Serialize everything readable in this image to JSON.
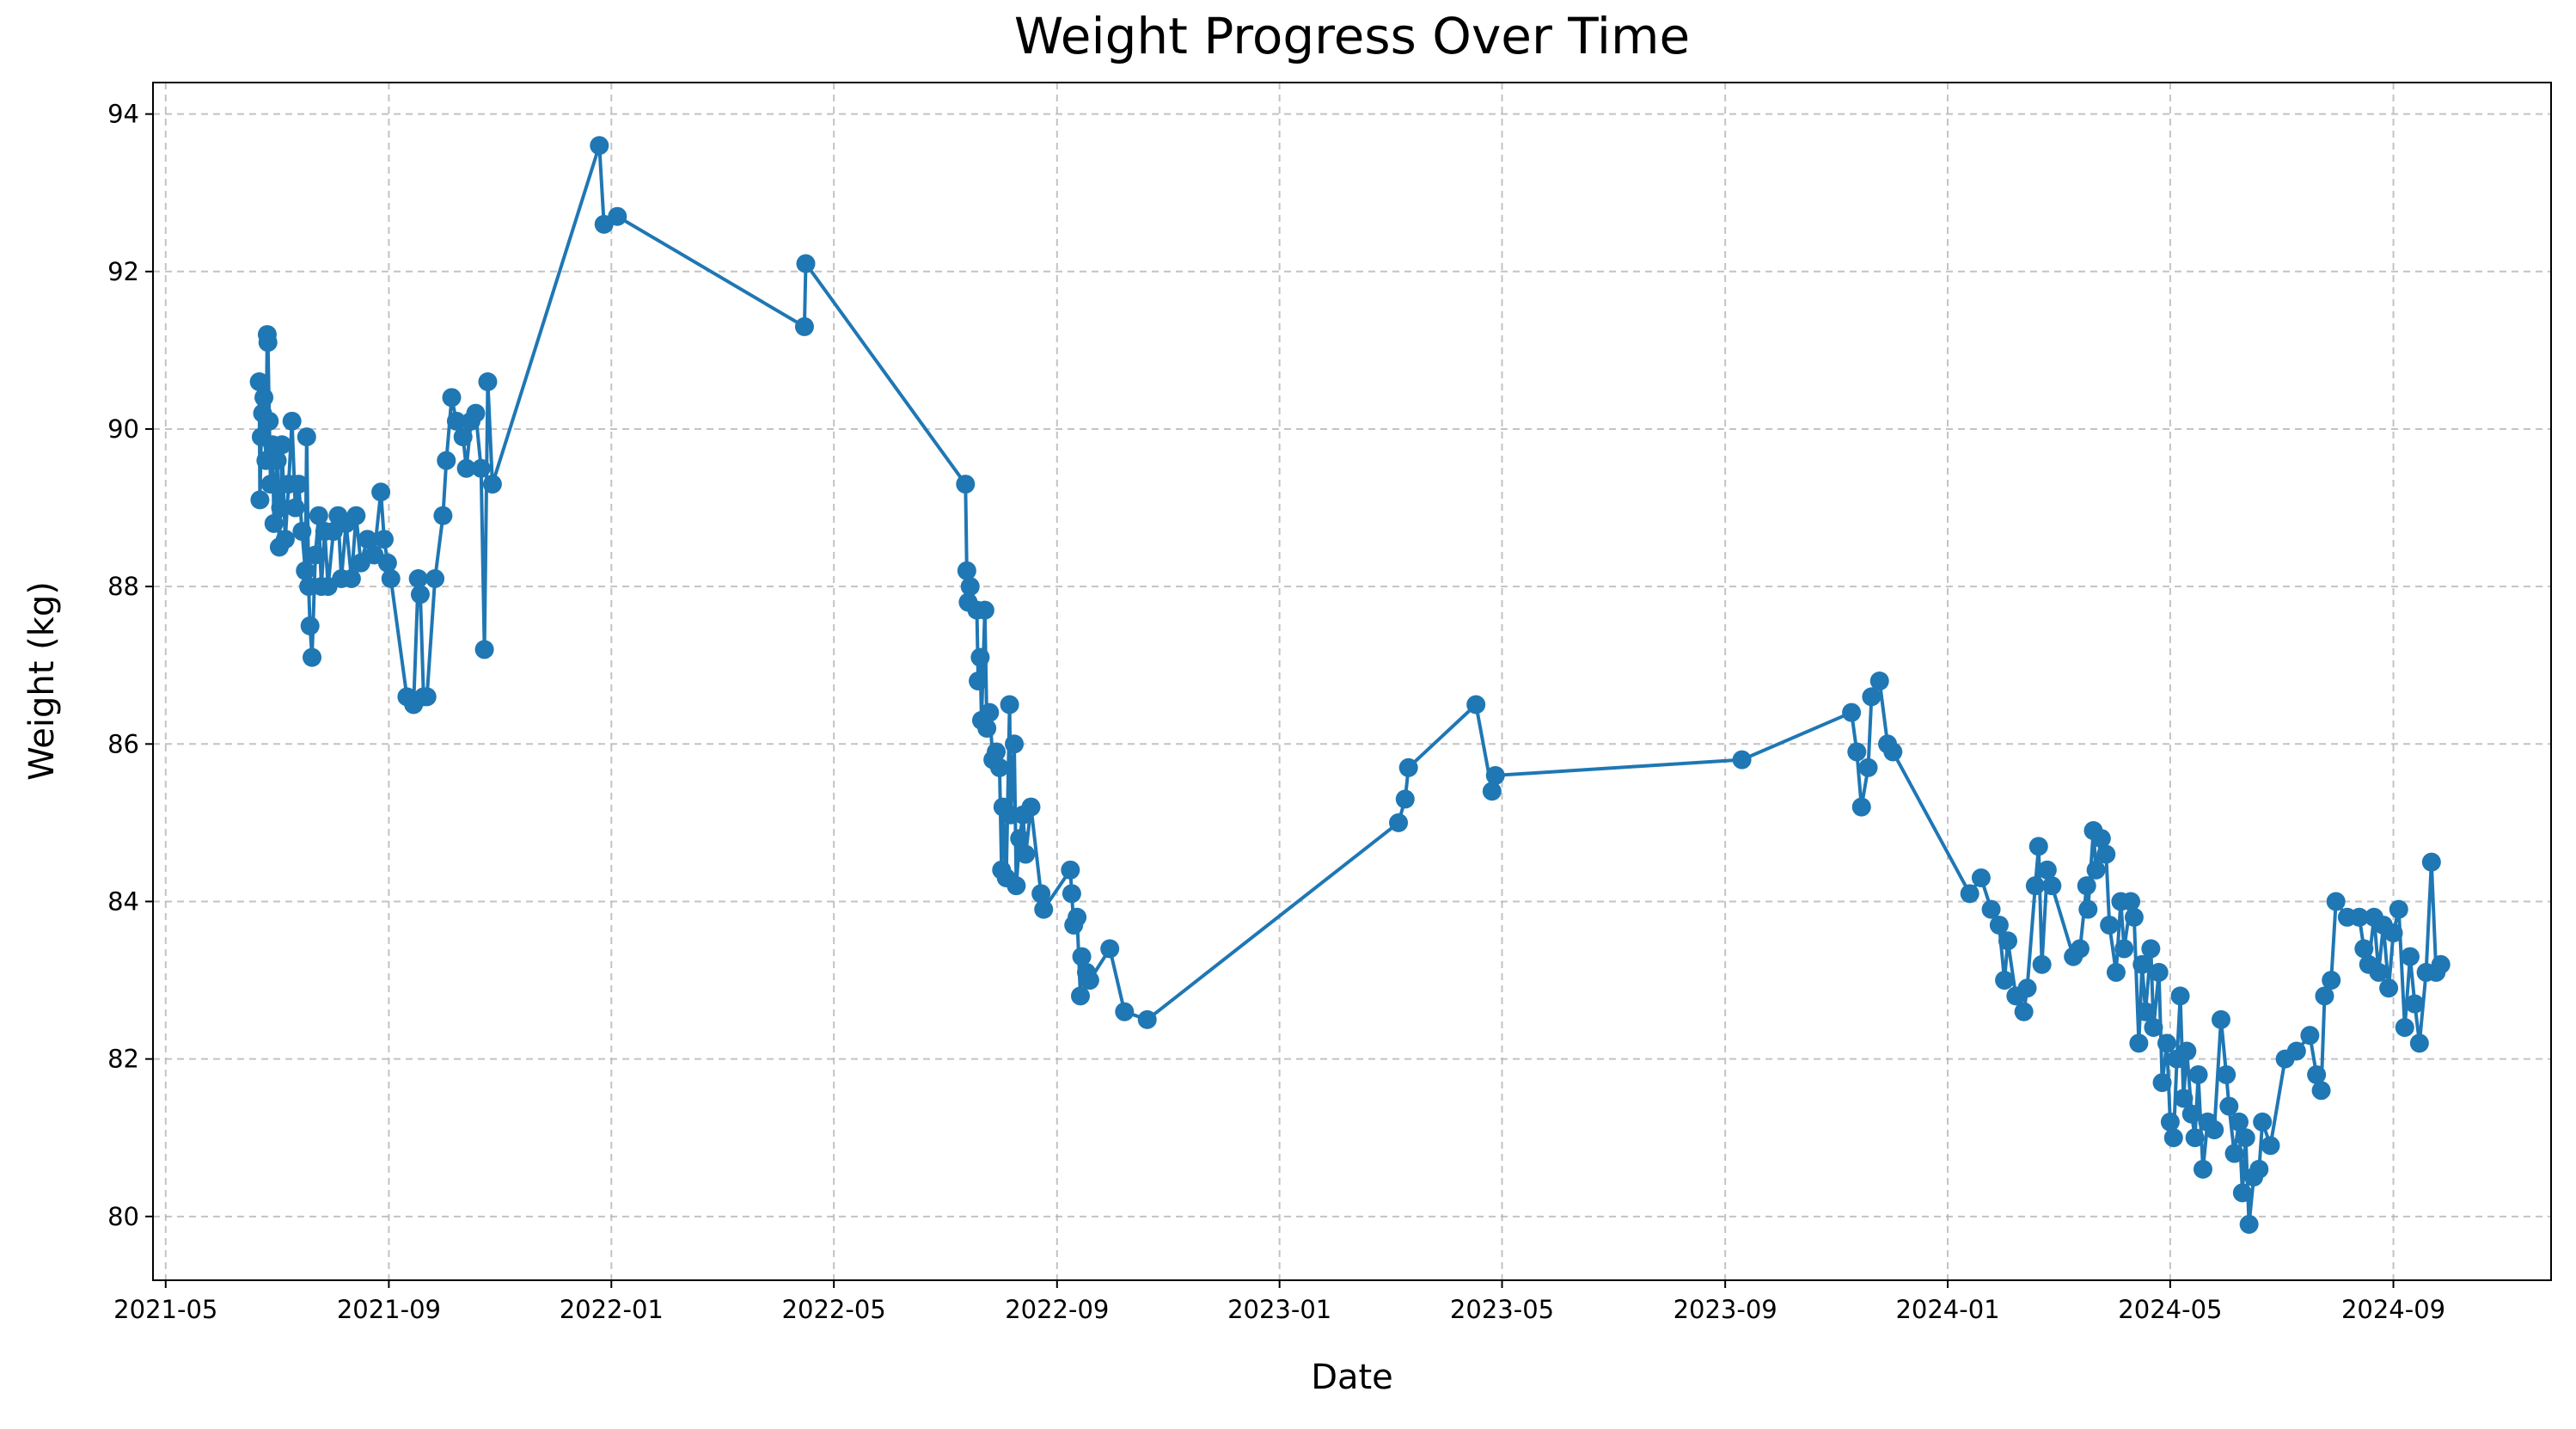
{
  "chart_data": {
    "type": "line",
    "title": "Weight Progress Over Time",
    "x_label": "Date",
    "y_label": "Weight (kg)",
    "color": "#1f77b4",
    "grid": true,
    "xlim": [
      2021.314,
      2024.903
    ],
    "ylim": [
      79.19,
      94.4
    ],
    "xticks": [
      {
        "value": 2021.333,
        "label": "2021-05"
      },
      {
        "value": 2021.667,
        "label": "2021-09"
      },
      {
        "value": 2022,
        "label": "2022-01"
      },
      {
        "value": 2022.333,
        "label": "2022-05"
      },
      {
        "value": 2022.667,
        "label": "2022-09"
      },
      {
        "value": 2023,
        "label": "2023-01"
      },
      {
        "value": 2023.333,
        "label": "2023-05"
      },
      {
        "value": 2023.667,
        "label": "2023-09"
      },
      {
        "value": 2024,
        "label": "2024-01"
      },
      {
        "value": 2024.333,
        "label": "2024-05"
      },
      {
        "value": 2024.667,
        "label": "2024-09"
      }
    ],
    "yticks": [
      80,
      82,
      84,
      86,
      88,
      90,
      92,
      94
    ],
    "x": [
      2021.473,
      2021.474,
      2021.476,
      2021.478,
      2021.48,
      2021.483,
      2021.485,
      2021.486,
      2021.488,
      2021.49,
      2021.493,
      2021.495,
      2021.5,
      2021.503,
      2021.505,
      2021.507,
      2021.512,
      2021.517,
      2021.522,
      2021.527,
      2021.532,
      2021.537,
      2021.542,
      2021.544,
      2021.547,
      2021.549,
      2021.552,
      2021.557,
      2021.562,
      2021.566,
      2021.571,
      2021.576,
      2021.584,
      2021.591,
      2021.596,
      2021.603,
      2021.611,
      2021.618,
      2021.625,
      2021.635,
      2021.645,
      2021.655,
      2021.66,
      2021.665,
      2021.67,
      2021.694,
      2021.704,
      2021.711,
      2021.714,
      2021.719,
      2021.724,
      2021.736,
      2021.748,
      2021.753,
      2021.761,
      2021.768,
      2021.778,
      2021.783,
      2021.79,
      2021.797,
      2021.805,
      2021.81,
      2021.815,
      2021.822,
      2021.982,
      2021.989,
      2022.009,
      2022.289,
      2022.291,
      2022.53,
      2022.532,
      2022.534,
      2022.537,
      2022.547,
      2022.549,
      2022.552,
      2022.554,
      2022.559,
      2022.562,
      2022.566,
      2022.571,
      2022.576,
      2022.581,
      2022.584,
      2022.586,
      2022.591,
      2022.596,
      2022.598,
      2022.603,
      2022.606,
      2022.611,
      2022.616,
      2022.62,
      2022.628,
      2022.643,
      2022.647,
      2022.687,
      2022.689,
      2022.692,
      2022.697,
      2022.702,
      2022.704,
      2022.711,
      2022.716,
      2022.746,
      2022.768,
      2022.802,
      2023.178,
      2023.188,
      2023.193,
      2023.294,
      2023.318,
      2023.323,
      2023.692,
      2023.856,
      2023.864,
      2023.871,
      2023.881,
      2023.886,
      2023.898,
      2023.91,
      2023.918,
      2024.033,
      2024.05,
      2024.065,
      2024.077,
      2024.085,
      2024.09,
      2024.102,
      2024.114,
      2024.119,
      2024.131,
      2024.136,
      2024.141,
      2024.149,
      2024.156,
      2024.188,
      2024.198,
      2024.208,
      2024.21,
      2024.218,
      2024.222,
      2024.23,
      2024.237,
      2024.242,
      2024.252,
      2024.259,
      2024.264,
      2024.274,
      2024.279,
      2024.286,
      2024.291,
      2024.296,
      2024.304,
      2024.308,
      2024.316,
      2024.321,
      2024.328,
      2024.333,
      2024.338,
      2024.343,
      2024.348,
      2024.353,
      2024.358,
      2024.365,
      2024.37,
      2024.375,
      2024.382,
      2024.389,
      2024.399,
      2024.409,
      2024.417,
      2024.421,
      2024.429,
      2024.436,
      2024.441,
      2024.446,
      2024.451,
      2024.458,
      2024.466,
      2024.471,
      2024.483,
      2024.505,
      2024.522,
      2024.542,
      2024.552,
      2024.559,
      2024.564,
      2024.574,
      2024.581,
      2024.598,
      2024.616,
      2024.623,
      2024.63,
      2024.638,
      2024.645,
      2024.652,
      2024.66,
      2024.667,
      2024.675,
      2024.684,
      2024.692,
      2024.699,
      2024.706,
      2024.716,
      2024.724,
      2024.731,
      2024.738
    ],
    "values": [
      90.6,
      89.1,
      89.9,
      90.2,
      90.4,
      89.6,
      91.2,
      91.1,
      90.1,
      89.3,
      89.8,
      88.8,
      89.6,
      88.5,
      89.0,
      89.8,
      88.6,
      89.3,
      90.1,
      89.0,
      89.3,
      88.7,
      88.2,
      89.9,
      88.0,
      87.5,
      87.1,
      88.4,
      88.9,
      88.0,
      88.7,
      88.0,
      88.7,
      88.9,
      88.1,
      88.8,
      88.1,
      88.9,
      88.3,
      88.6,
      88.4,
      89.2,
      88.6,
      88.3,
      88.1,
      86.6,
      86.5,
      88.1,
      87.9,
      86.6,
      86.6,
      88.1,
      88.9,
      89.6,
      90.4,
      90.1,
      89.9,
      89.5,
      90.1,
      90.2,
      89.5,
      87.2,
      90.6,
      89.3,
      93.6,
      92.6,
      92.7,
      91.3,
      92.1,
      89.3,
      88.2,
      87.8,
      88.0,
      87.7,
      86.8,
      87.1,
      86.3,
      87.7,
      86.2,
      86.4,
      85.8,
      85.9,
      85.7,
      84.4,
      85.2,
      84.3,
      86.5,
      85.1,
      86.0,
      84.2,
      84.8,
      85.1,
      84.6,
      85.2,
      84.1,
      83.9,
      84.4,
      84.1,
      83.7,
      83.8,
      82.8,
      83.3,
      83.1,
      83.0,
      83.4,
      82.6,
      82.5,
      85.0,
      85.3,
      85.7,
      86.5,
      85.4,
      85.6,
      85.8,
      86.4,
      85.9,
      85.2,
      85.7,
      86.6,
      86.8,
      86.0,
      85.9,
      84.1,
      84.3,
      83.9,
      83.7,
      83.0,
      83.5,
      82.8,
      82.6,
      82.9,
      84.2,
      84.7,
      83.2,
      84.4,
      84.2,
      83.3,
      83.4,
      84.2,
      83.9,
      84.9,
      84.4,
      84.8,
      84.6,
      83.7,
      83.1,
      84.0,
      83.4,
      84.0,
      83.8,
      82.2,
      83.2,
      82.6,
      83.4,
      82.4,
      83.1,
      81.7,
      82.2,
      81.2,
      81.0,
      82.0,
      82.8,
      81.5,
      82.1,
      81.3,
      81.0,
      81.8,
      80.6,
      81.2,
      81.1,
      82.5,
      81.8,
      81.4,
      80.8,
      81.2,
      80.3,
      81.0,
      79.9,
      80.5,
      80.6,
      81.2,
      80.9,
      82.0,
      82.1,
      82.3,
      81.8,
      81.6,
      82.8,
      83.0,
      84.0,
      83.8,
      83.8,
      83.4,
      83.2,
      83.8,
      83.1,
      83.7,
      82.9,
      83.6,
      83.9,
      82.4,
      83.3,
      82.7,
      82.2,
      83.1,
      84.5,
      83.1,
      83.2
    ]
  }
}
